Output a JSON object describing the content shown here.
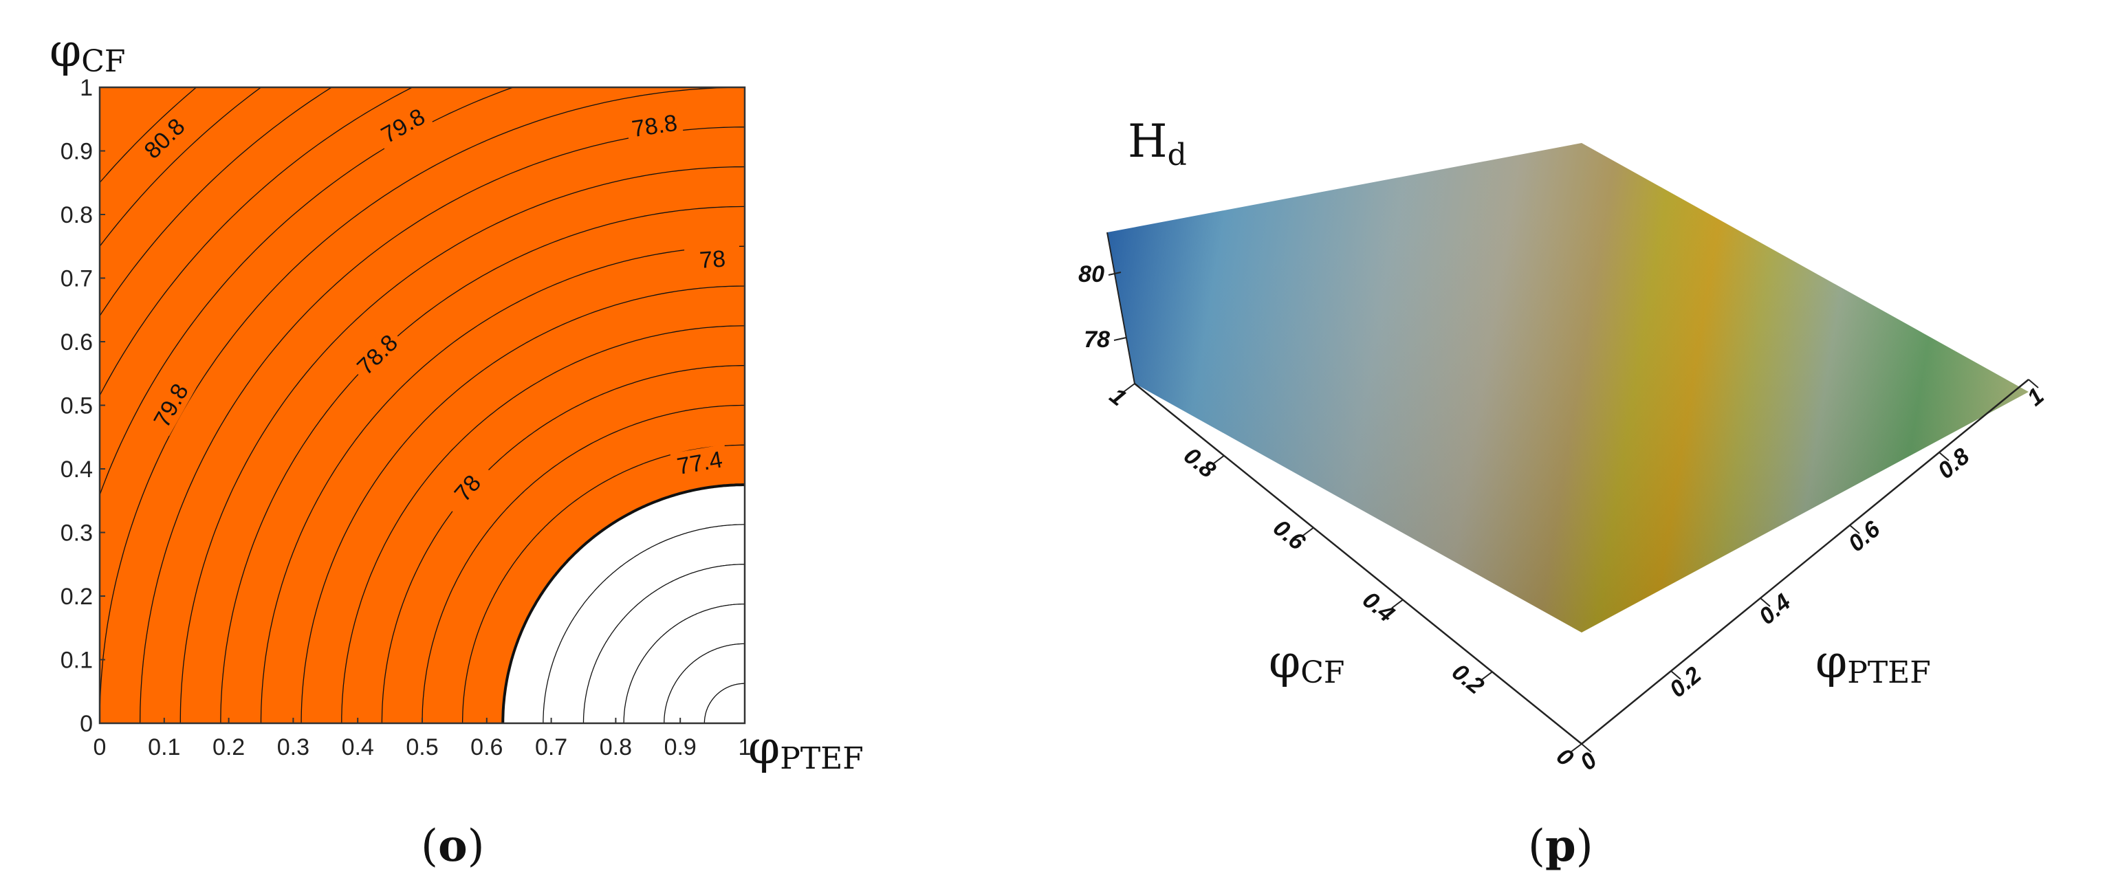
{
  "chart_data": [
    {
      "type": "contour",
      "panel_label_open": "(",
      "panel_label_letter": "o",
      "panel_label_close": ")",
      "xlabel_symbol": "φ",
      "xlabel_sub": "PTEF",
      "ylabel_symbol": "φ",
      "ylabel_sub": "CF",
      "xlim": [
        0,
        1
      ],
      "ylim": [
        0,
        1
      ],
      "xticks": [
        0,
        0.1,
        0.2,
        0.3,
        0.4,
        0.5,
        0.6,
        0.7,
        0.8,
        0.9,
        1
      ],
      "yticks": [
        0,
        0.1,
        0.2,
        0.3,
        0.4,
        0.5,
        0.6,
        0.7,
        0.8,
        0.9,
        1
      ],
      "xtick_labels": [
        "0",
        "0.1",
        "0.2",
        "0.3",
        "0.4",
        "0.5",
        "0.6",
        "0.7",
        "0.8",
        "0.9",
        "1"
      ],
      "ytick_labels": [
        "0",
        "0.1",
        "0.2",
        "0.3",
        "0.4",
        "0.5",
        "0.6",
        "0.7",
        "0.8",
        "0.9",
        "1"
      ],
      "threshold_level": 78,
      "fill_color_above_threshold": "#ff6a00",
      "fill_color_below_threshold": "#ffffff",
      "contour_levels": [
        76.8,
        77.0,
        77.2,
        77.4,
        77.6,
        77.8,
        78.0,
        78.2,
        78.4,
        78.6,
        78.8,
        79.0,
        79.2,
        79.4,
        79.6,
        79.8,
        80.0,
        80.2,
        80.4,
        80.6,
        80.8,
        81.0
      ],
      "contour_labels": [
        {
          "text": "80.8",
          "x": 0.1,
          "y": 0.92
        },
        {
          "text": "79.8",
          "x": 0.47,
          "y": 0.94
        },
        {
          "text": "78.8",
          "x": 0.86,
          "y": 0.94
        },
        {
          "text": "78",
          "x": 0.95,
          "y": 0.73
        },
        {
          "text": "78.8",
          "x": 0.43,
          "y": 0.58
        },
        {
          "text": "79.8",
          "x": 0.11,
          "y": 0.5
        },
        {
          "text": "78",
          "x": 0.57,
          "y": 0.37
        },
        {
          "text": "77.4",
          "x": 0.93,
          "y": 0.41
        }
      ]
    },
    {
      "type": "surface3d",
      "panel_label_open": "(",
      "panel_label_letter": "p",
      "panel_label_close": ")",
      "zlabel_symbol": "H",
      "zlabel_sub": "d",
      "xlabel_symbol": "φ",
      "xlabel_sub": "PTEF",
      "ylabel_symbol": "φ",
      "ylabel_sub": "CF",
      "ztick_labels": [
        "80",
        "78"
      ],
      "cf_tick_labels": [
        "0",
        "0.2",
        "0.4",
        "0.6",
        "0.8",
        "1"
      ],
      "ptef_tick_labels": [
        "0",
        "0.2",
        "0.4",
        "0.6",
        "0.8",
        "1"
      ]
    }
  ]
}
